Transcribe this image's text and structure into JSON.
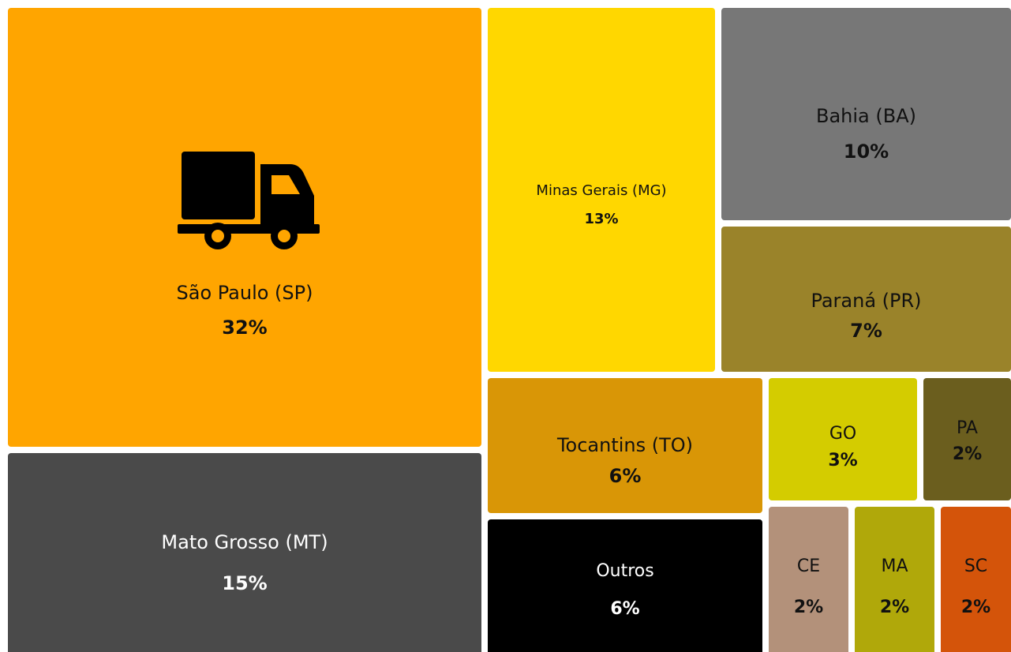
{
  "chart_data": {
    "type": "treemap",
    "categories": [
      "São Paulo (SP)",
      "Mato Grosso (MT)",
      "Minas Gerais (MG)",
      "Bahia (BA)",
      "Paraná (PR)",
      "Tocantins (TO)",
      "Outros",
      "GO",
      "PA",
      "CE",
      "MA",
      "SC"
    ],
    "values": [
      32,
      15,
      13,
      10,
      7,
      6,
      6,
      3,
      2,
      2,
      2,
      2
    ],
    "value_labels": [
      "32%",
      "15%",
      "13%",
      "10%",
      "7%",
      "6%",
      "6%",
      "3%",
      "2%",
      "2%",
      "2%",
      "2%"
    ],
    "colors": [
      "#ffa500",
      "#4a4a4a",
      "#ffd700",
      "#777777",
      "#9a832a",
      "#d99606",
      "#000000",
      "#d4cc00",
      "#6b5e1e",
      "#b3917a",
      "#b0a80a",
      "#d4540a"
    ]
  }
}
